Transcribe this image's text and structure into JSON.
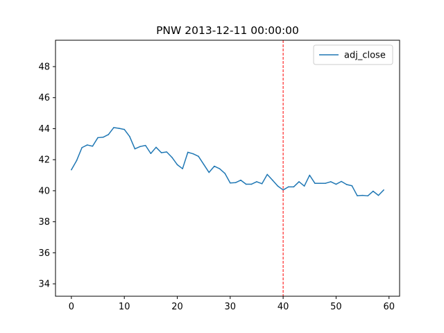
{
  "chart_data": {
    "type": "line",
    "title": "PNW 2013-12-11 00:00:00",
    "xlabel": "",
    "ylabel": "",
    "xlim": [
      -3,
      62
    ],
    "ylim": [
      33.2,
      49.7
    ],
    "xticks": [
      0,
      10,
      20,
      30,
      40,
      50,
      60
    ],
    "yticks": [
      34,
      36,
      38,
      40,
      42,
      44,
      46,
      48
    ],
    "grid": false,
    "legend_position": "top-right",
    "series": [
      {
        "name": "adj_close",
        "color": "#1f77b4",
        "x": [
          0,
          1,
          2,
          3,
          4,
          5,
          6,
          7,
          8,
          9,
          10,
          11,
          12,
          13,
          14,
          15,
          16,
          17,
          18,
          19,
          20,
          21,
          22,
          23,
          24,
          25,
          26,
          27,
          28,
          29,
          30,
          31,
          32,
          33,
          34,
          35,
          36,
          37,
          38,
          39,
          40,
          41,
          42,
          43,
          44,
          45,
          46,
          47,
          48,
          49,
          50,
          51,
          52,
          53,
          54,
          55,
          56,
          57,
          58,
          59
        ],
        "y": [
          41.35,
          41.95,
          42.78,
          42.95,
          42.87,
          43.42,
          43.45,
          43.62,
          44.07,
          44.02,
          43.95,
          43.5,
          42.7,
          42.85,
          42.92,
          42.4,
          42.8,
          42.45,
          42.5,
          42.15,
          41.68,
          41.42,
          42.48,
          42.38,
          42.22,
          41.7,
          41.18,
          41.58,
          41.42,
          41.12,
          40.5,
          40.52,
          40.68,
          40.42,
          40.42,
          40.58,
          40.45,
          41.05,
          40.68,
          40.3,
          40.05,
          40.25,
          40.25,
          40.58,
          40.3,
          41.0,
          40.48,
          40.48,
          40.48,
          40.58,
          40.42,
          40.6,
          40.4,
          40.32,
          39.68,
          39.7,
          39.67,
          39.97,
          39.7,
          40.05
        ]
      }
    ],
    "vline": {
      "x": 40,
      "color": "#ff0000",
      "style": "dashed"
    }
  }
}
